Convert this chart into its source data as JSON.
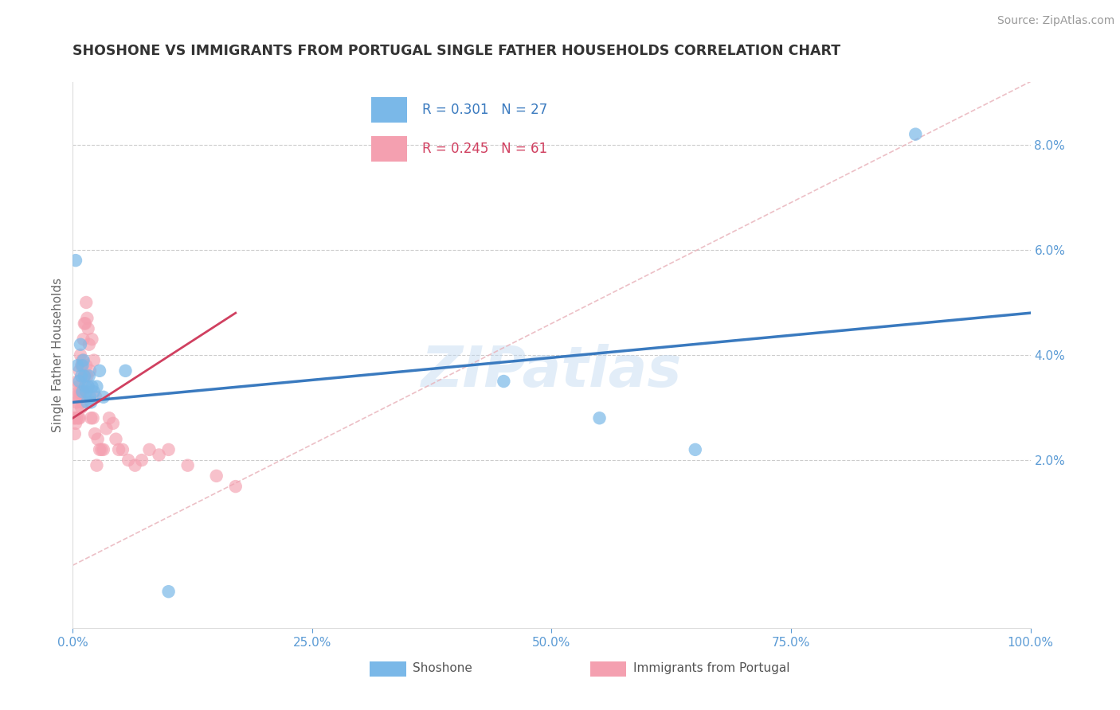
{
  "title": "SHOSHONE VS IMMIGRANTS FROM PORTUGAL SINGLE FATHER HOUSEHOLDS CORRELATION CHART",
  "source": "Source: ZipAtlas.com",
  "ylabel": "Single Father Households",
  "xlabel_ticks": [
    "0.0%",
    "25.0%",
    "50.0%",
    "75.0%",
    "100.0%"
  ],
  "ylabel_ticks": [
    "2.0%",
    "4.0%",
    "6.0%",
    "8.0%"
  ],
  "xlim": [
    0.0,
    1.0
  ],
  "ylim": [
    -0.012,
    0.092
  ],
  "ytick_vals": [
    0.02,
    0.04,
    0.06,
    0.08
  ],
  "xtick_vals": [
    0.0,
    0.25,
    0.5,
    0.75,
    1.0
  ],
  "shoshone_color": "#7ab8e8",
  "portugal_color": "#f4a0b0",
  "shoshone_line_color": "#3a7abf",
  "portugal_line_color": "#d04060",
  "shoshone_R": 0.301,
  "shoshone_N": 27,
  "portugal_R": 0.245,
  "portugal_N": 61,
  "legend_label_shoshone": "Shoshone",
  "legend_label_portugal": "Immigrants from Portugal",
  "watermark": "ZIPatlas",
  "title_color": "#333333",
  "axis_color": "#5b9bd5",
  "grid_color": "#cccccc",
  "shoshone_x": [
    0.003,
    0.005,
    0.007,
    0.008,
    0.009,
    0.01,
    0.01,
    0.011,
    0.012,
    0.013,
    0.014,
    0.015,
    0.016,
    0.017,
    0.018,
    0.019,
    0.02,
    0.022,
    0.025,
    0.028,
    0.032,
    0.055,
    0.1,
    0.45,
    0.55,
    0.65,
    0.88
  ],
  "shoshone_y": [
    0.058,
    0.038,
    0.035,
    0.042,
    0.036,
    0.038,
    0.033,
    0.039,
    0.036,
    0.034,
    0.033,
    0.031,
    0.034,
    0.036,
    0.032,
    0.031,
    0.034,
    0.033,
    0.034,
    0.037,
    0.032,
    0.037,
    -0.005,
    0.035,
    0.028,
    0.022,
    0.082
  ],
  "portugal_x": [
    0.001,
    0.002,
    0.002,
    0.003,
    0.003,
    0.004,
    0.004,
    0.005,
    0.005,
    0.006,
    0.006,
    0.006,
    0.007,
    0.007,
    0.007,
    0.008,
    0.008,
    0.009,
    0.009,
    0.01,
    0.01,
    0.011,
    0.011,
    0.012,
    0.012,
    0.013,
    0.013,
    0.014,
    0.014,
    0.015,
    0.015,
    0.016,
    0.016,
    0.017,
    0.018,
    0.019,
    0.02,
    0.021,
    0.022,
    0.023,
    0.024,
    0.025,
    0.026,
    0.028,
    0.03,
    0.032,
    0.035,
    0.038,
    0.042,
    0.045,
    0.048,
    0.052,
    0.058,
    0.065,
    0.072,
    0.08,
    0.09,
    0.1,
    0.12,
    0.15,
    0.17
  ],
  "portugal_y": [
    0.028,
    0.025,
    0.028,
    0.032,
    0.027,
    0.031,
    0.028,
    0.035,
    0.03,
    0.034,
    0.028,
    0.033,
    0.037,
    0.028,
    0.032,
    0.04,
    0.033,
    0.038,
    0.03,
    0.039,
    0.031,
    0.043,
    0.033,
    0.046,
    0.036,
    0.046,
    0.036,
    0.05,
    0.038,
    0.047,
    0.036,
    0.045,
    0.034,
    0.042,
    0.037,
    0.028,
    0.043,
    0.028,
    0.039,
    0.025,
    0.032,
    0.019,
    0.024,
    0.022,
    0.022,
    0.022,
    0.026,
    0.028,
    0.027,
    0.024,
    0.022,
    0.022,
    0.02,
    0.019,
    0.02,
    0.022,
    0.021,
    0.022,
    0.019,
    0.017,
    0.015
  ],
  "portugal_line_x0": 0.0,
  "portugal_line_x1": 0.17,
  "portugal_line_y0": 0.028,
  "portugal_line_y1": 0.048,
  "shoshone_line_x0": 0.0,
  "shoshone_line_x1": 1.0,
  "shoshone_line_y0": 0.031,
  "shoshone_line_y1": 0.048,
  "ref_line_x0": 0.0,
  "ref_line_x1": 1.0,
  "ref_line_y0": 0.0,
  "ref_line_y1": 0.092
}
